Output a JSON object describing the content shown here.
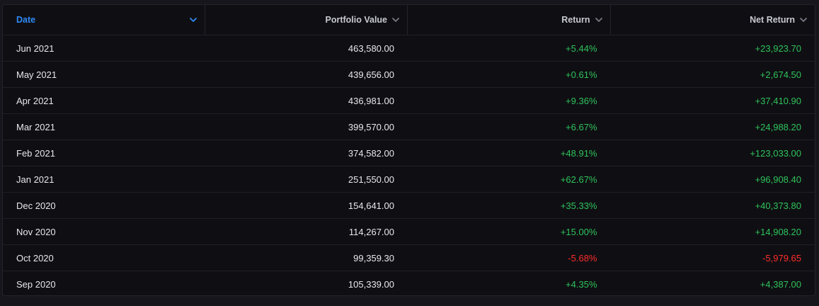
{
  "table": {
    "columns": [
      {
        "label": "Date",
        "sorted": true
      },
      {
        "label": "Portfolio Value",
        "sorted": false
      },
      {
        "label": "Return",
        "sorted": false
      },
      {
        "label": "Net Return",
        "sorted": false
      }
    ],
    "rows": [
      {
        "date": "Jun 2021",
        "value": "463,580.00",
        "return": "+5.44%",
        "net": "+23,923.70",
        "trend": "pos"
      },
      {
        "date": "May 2021",
        "value": "439,656.00",
        "return": "+0.61%",
        "net": "+2,674.50",
        "trend": "pos"
      },
      {
        "date": "Apr 2021",
        "value": "436,981.00",
        "return": "+9.36%",
        "net": "+37,410.90",
        "trend": "pos"
      },
      {
        "date": "Mar 2021",
        "value": "399,570.00",
        "return": "+6.67%",
        "net": "+24,988.20",
        "trend": "pos"
      },
      {
        "date": "Feb 2021",
        "value": "374,582.00",
        "return": "+48.91%",
        "net": "+123,033.00",
        "trend": "pos"
      },
      {
        "date": "Jan 2021",
        "value": "251,550.00",
        "return": "+62.67%",
        "net": "+96,908.40",
        "trend": "pos"
      },
      {
        "date": "Dec 2020",
        "value": "154,641.00",
        "return": "+35.33%",
        "net": "+40,373.80",
        "trend": "pos"
      },
      {
        "date": "Nov 2020",
        "value": "114,267.00",
        "return": "+15.00%",
        "net": "+14,908.20",
        "trend": "pos"
      },
      {
        "date": "Oct 2020",
        "value": "99,359.30",
        "return": "-5.68%",
        "net": "-5,979.65",
        "trend": "neg"
      },
      {
        "date": "Sep 2020",
        "value": "105,339.00",
        "return": "+4.35%",
        "net": "+4,387.00",
        "trend": "pos"
      }
    ]
  },
  "colors": {
    "background": "#16161c",
    "panel": "#0f0f13",
    "accent": "#2f8af5",
    "positive": "#2fc25b",
    "negative": "#ff2b2b",
    "chevron_inactive": "#7a7a84"
  },
  "icons": {
    "header_sort": "chevron-down-icon"
  }
}
